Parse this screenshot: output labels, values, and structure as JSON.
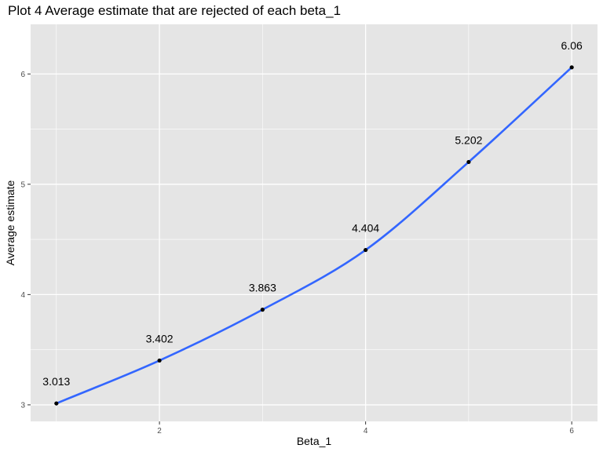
{
  "chart_data": {
    "type": "line",
    "title": "Plot 4 Average estimate that are rejected of each beta_1",
    "xlabel": "Beta_1",
    "ylabel": "Average estimate",
    "x": [
      1,
      2,
      3,
      4,
      5,
      6
    ],
    "series": [
      {
        "values": [
          3.013,
          3.402,
          3.863,
          4.404,
          5.202,
          6.06
        ]
      }
    ],
    "data_labels": [
      "3.013",
      "3.402",
      "3.863",
      "4.404",
      "5.202",
      "6.06"
    ],
    "x_ticks": [
      2,
      4,
      6
    ],
    "y_ticks": [
      3,
      4,
      5,
      6
    ],
    "xlim": [
      0.75,
      6.25
    ],
    "ylim": [
      2.85,
      6.45
    ],
    "grid": true,
    "colors": {
      "panel_background": "#e5e5e5",
      "grid_major": "#ffffff",
      "line": "#3366ff",
      "point": "#000000"
    }
  }
}
